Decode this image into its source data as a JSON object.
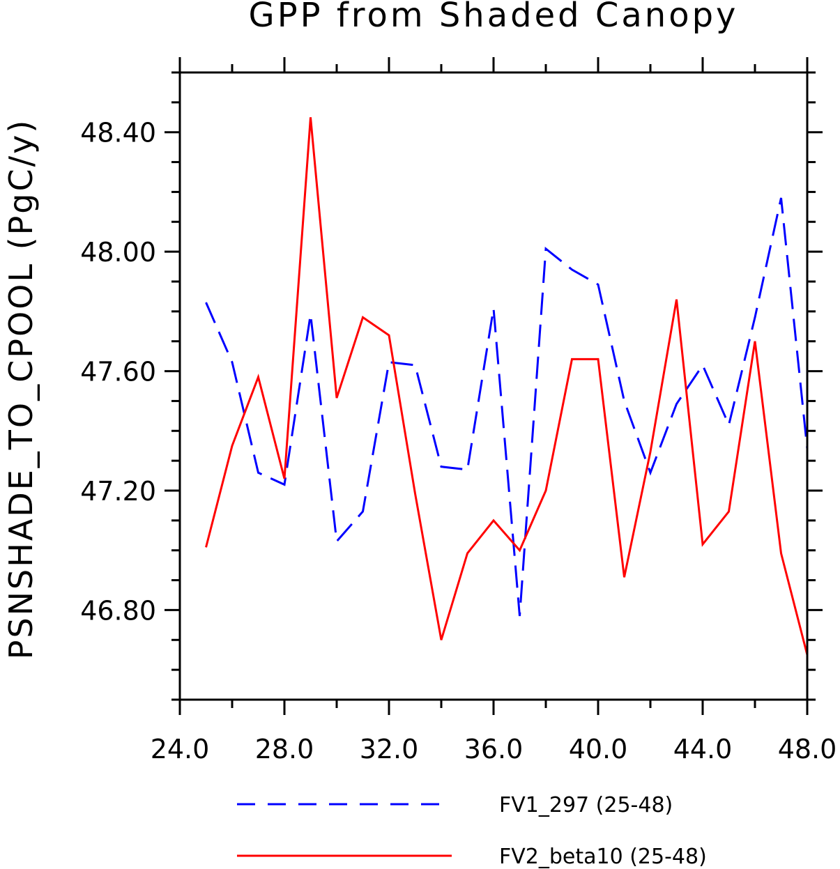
{
  "chart_data": {
    "type": "line",
    "title": "GPP from Shaded Canopy",
    "xlabel": "",
    "ylabel": "PSNSHADE_TO_CPOOL  (PgC/y)",
    "xlim": [
      24.0,
      48.0
    ],
    "ylim": [
      46.5,
      48.6
    ],
    "x_ticks": [
      "24.0",
      "28.0",
      "32.0",
      "36.0",
      "40.0",
      "44.0",
      "48.0"
    ],
    "y_ticks": [
      "46.80",
      "47.20",
      "47.60",
      "48.00",
      "48.40"
    ],
    "x": [
      25,
      26,
      27,
      28,
      29,
      30,
      31,
      32,
      33,
      34,
      35,
      36,
      37,
      38,
      39,
      40,
      41,
      42,
      43,
      44,
      45,
      46,
      47,
      48
    ],
    "series": [
      {
        "name": "FV1_297 (25-48)",
        "color": "#0000ff",
        "style": "dashed",
        "values": [
          47.83,
          47.63,
          47.26,
          47.22,
          47.79,
          47.03,
          47.13,
          47.63,
          47.62,
          47.28,
          47.27,
          47.81,
          46.78,
          48.01,
          47.94,
          47.89,
          47.5,
          47.26,
          47.49,
          47.62,
          47.42,
          47.78,
          48.18,
          47.34
        ]
      },
      {
        "name": "FV2_beta10 (25-48)",
        "color": "#ff0000",
        "style": "solid",
        "values": [
          47.01,
          47.35,
          47.58,
          47.24,
          48.45,
          47.51,
          47.78,
          47.72,
          47.19,
          46.7,
          46.99,
          47.1,
          47.0,
          47.2,
          47.64,
          47.64,
          46.91,
          47.33,
          47.84,
          47.02,
          47.13,
          47.7,
          46.99,
          46.65
        ]
      }
    ]
  }
}
